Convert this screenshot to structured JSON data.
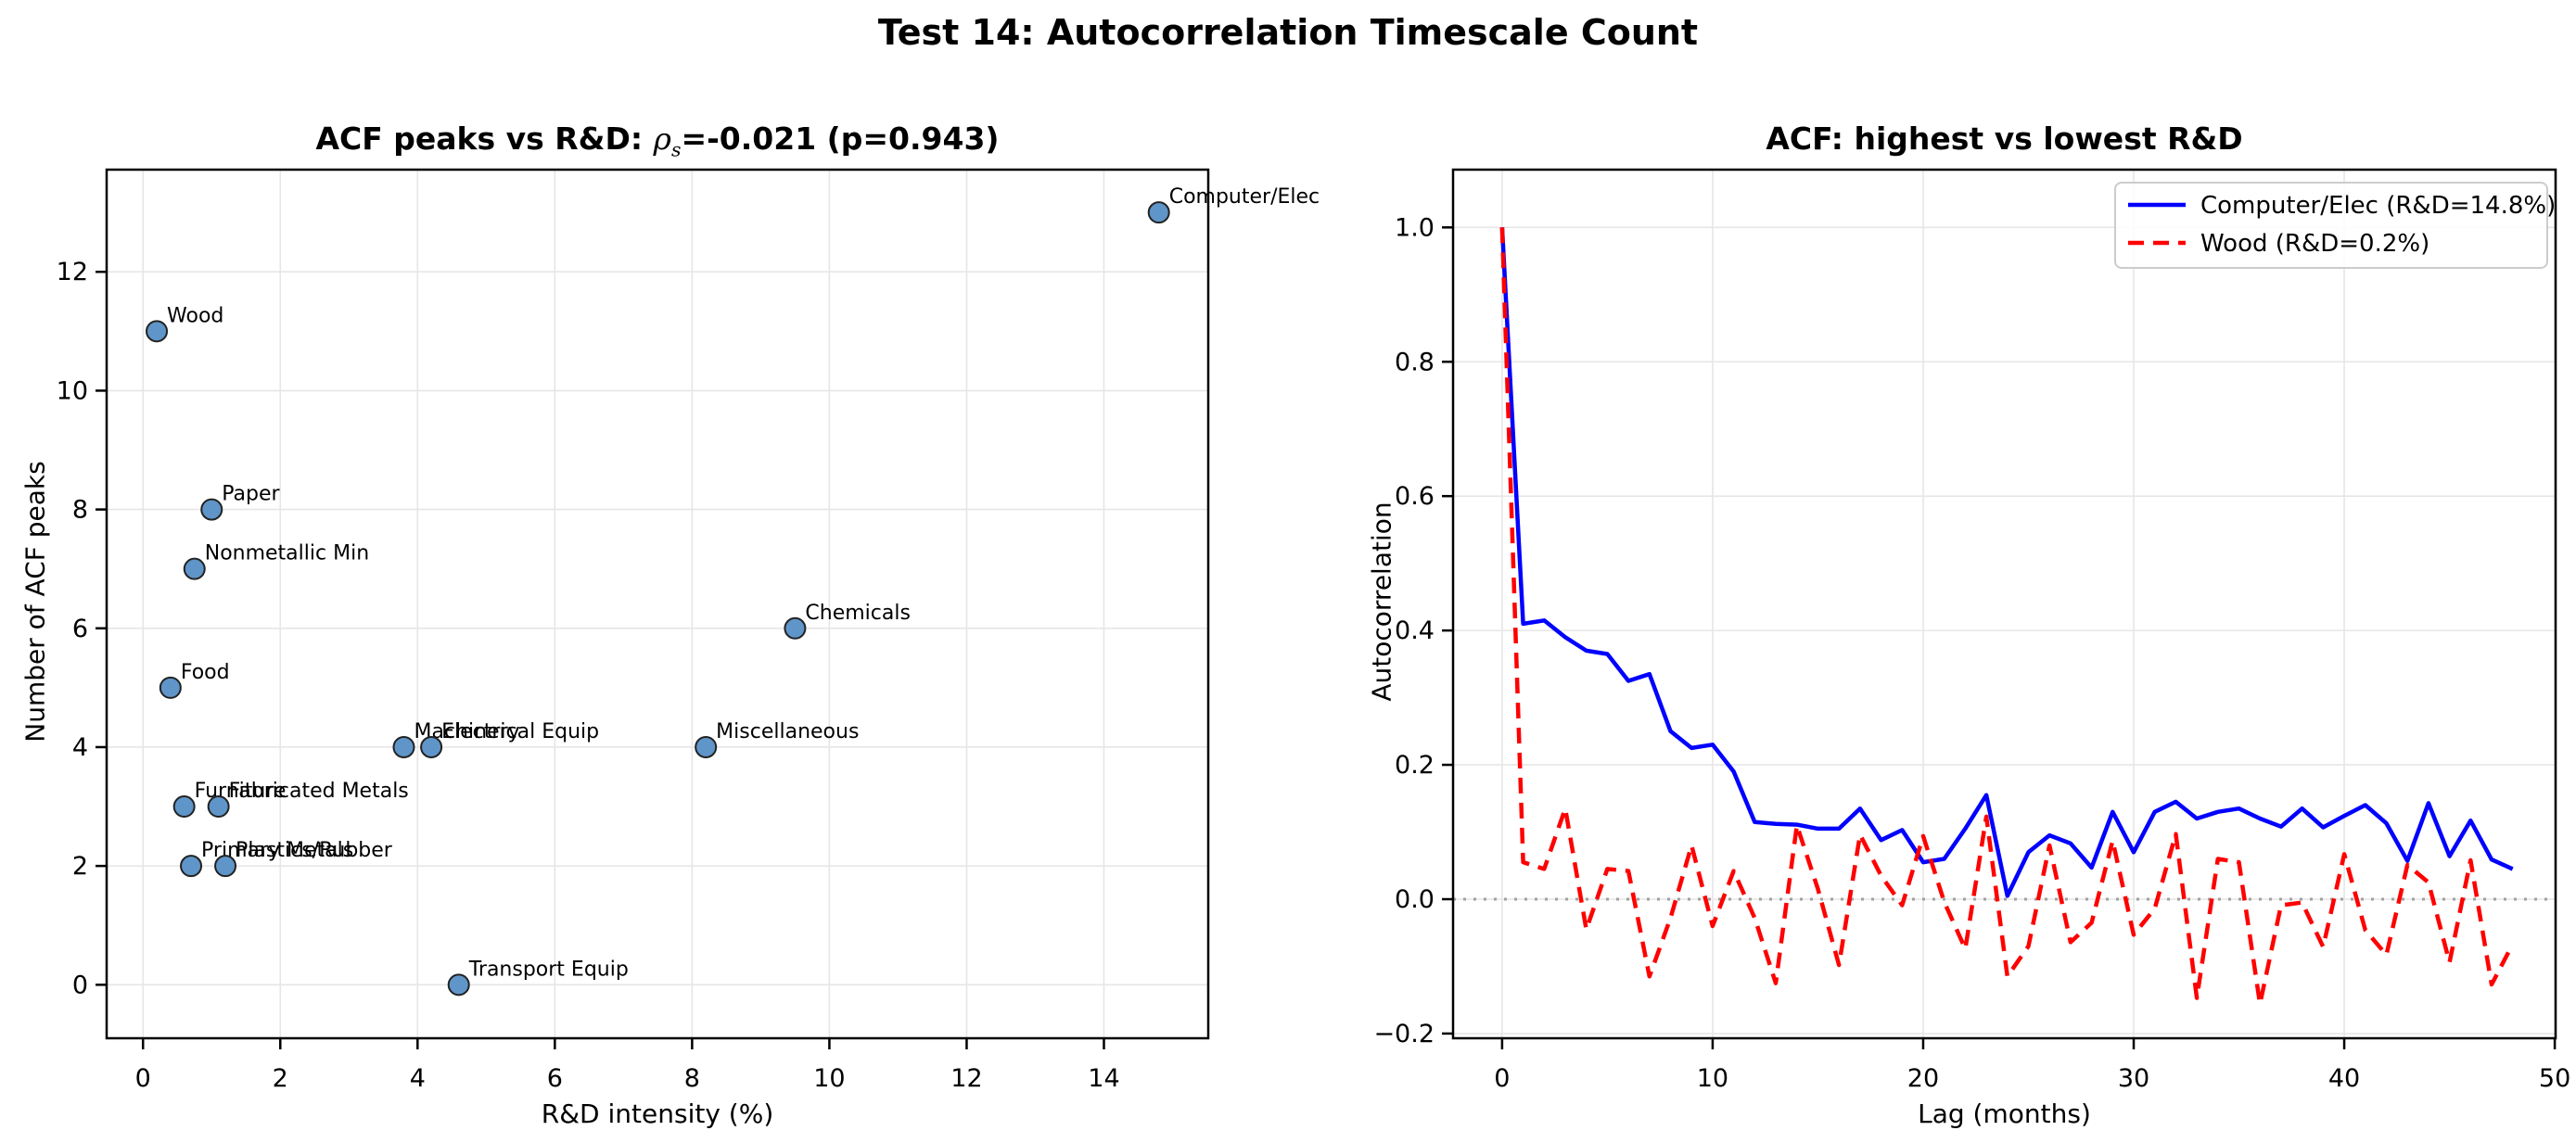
{
  "figure": {
    "suptitle": "Test 14: Autocorrelation Timescale Count"
  },
  "left_chart": {
    "title_prefix": "ACF peaks vs R&D: ",
    "title_rho": "ρ",
    "title_rho_sub": "s",
    "title_suffix": "=-0.021 (p=0.943)",
    "xlabel": "R&D intensity (%)",
    "ylabel": "Number of ACF peaks"
  },
  "right_chart": {
    "title": "ACF: highest vs lowest R&D",
    "xlabel": "Lag (months)",
    "ylabel": "Autocorrelation"
  },
  "chart_data": [
    {
      "type": "scatter",
      "title": "ACF peaks vs R&D: ρs=-0.021 (p=0.943)",
      "xlabel": "R&D intensity (%)",
      "ylabel": "Number of ACF peaks",
      "xlim": [
        -0.53,
        15.52
      ],
      "ylim": [
        -0.9,
        13.72
      ],
      "xticks": [
        0,
        2,
        4,
        6,
        8,
        10,
        12,
        14
      ],
      "yticks": [
        0,
        2,
        4,
        6,
        8,
        10,
        12
      ],
      "grid": true,
      "marker_fill": "#5f95c8",
      "marker_edge": "#222222",
      "points": [
        {
          "label": "Wood",
          "x": 0.2,
          "y": 11
        },
        {
          "label": "Paper",
          "x": 1.0,
          "y": 8
        },
        {
          "label": "Nonmetallic Min",
          "x": 0.75,
          "y": 7
        },
        {
          "label": "Chemicals",
          "x": 9.5,
          "y": 6
        },
        {
          "label": "Food",
          "x": 0.4,
          "y": 5
        },
        {
          "label": "Machinery",
          "x": 3.8,
          "y": 4
        },
        {
          "label": "Electrical Equip",
          "x": 4.2,
          "y": 4
        },
        {
          "label": "Miscellaneous",
          "x": 8.2,
          "y": 4
        },
        {
          "label": "Furniture",
          "x": 0.6,
          "y": 3
        },
        {
          "label": "Fabricated Metals",
          "x": 1.1,
          "y": 3
        },
        {
          "label": "Primary Metals",
          "x": 0.7,
          "y": 2
        },
        {
          "label": "Plastics/Rubber",
          "x": 1.2,
          "y": 2
        },
        {
          "label": "Transport Equip",
          "x": 4.6,
          "y": 0
        },
        {
          "label": "Computer/Elec",
          "x": 14.8,
          "y": 13
        }
      ]
    },
    {
      "type": "line",
      "title": "ACF: highest vs lowest R&D",
      "xlabel": "Lag (months)",
      "ylabel": "Autocorrelation",
      "xlim": [
        -2.33,
        50.04
      ],
      "ylim": [
        -0.207,
        1.086
      ],
      "xticks": [
        0,
        10,
        20,
        30,
        40,
        50
      ],
      "yticks": [
        -0.2,
        0.0,
        0.2,
        0.4,
        0.6,
        0.8,
        1.0
      ],
      "grid": true,
      "zero_line": true,
      "zero_line_color": "#a0a0a0",
      "legend_position": "upper right",
      "x": [
        0,
        1,
        2,
        3,
        4,
        5,
        6,
        7,
        8,
        9,
        10,
        11,
        12,
        13,
        14,
        15,
        16,
        17,
        18,
        19,
        20,
        21,
        22,
        23,
        24,
        25,
        26,
        27,
        28,
        29,
        30,
        31,
        32,
        33,
        34,
        35,
        36,
        37,
        38,
        39,
        40,
        41,
        42,
        43,
        44,
        45,
        46,
        47,
        48
      ],
      "series": [
        {
          "name": "Computer/Elec (R&D=14.8%)",
          "color": "#0000ff",
          "style": "solid",
          "values": [
            1.0,
            0.41,
            0.415,
            0.39,
            0.37,
            0.365,
            0.325,
            0.335,
            0.25,
            0.225,
            0.23,
            0.19,
            0.115,
            0.112,
            0.111,
            0.105,
            0.105,
            0.135,
            0.088,
            0.103,
            0.055,
            0.06,
            0.105,
            0.155,
            0.005,
            0.07,
            0.095,
            0.083,
            0.047,
            0.13,
            0.07,
            0.13,
            0.145,
            0.12,
            0.13,
            0.135,
            0.12,
            0.108,
            0.135,
            0.107,
            0.124,
            0.14,
            0.113,
            0.057,
            0.143,
            0.064,
            0.117,
            0.059,
            0.045
          ]
        },
        {
          "name": "Wood (R&D=0.2%)",
          "color": "#ff0000",
          "style": "dashed",
          "values": [
            1.0,
            0.055,
            0.045,
            0.135,
            -0.045,
            0.045,
            0.042,
            -0.115,
            -0.028,
            0.08,
            -0.04,
            0.042,
            -0.028,
            -0.125,
            0.11,
            0.015,
            -0.098,
            0.096,
            0.035,
            -0.009,
            0.094,
            -0.004,
            -0.074,
            0.123,
            -0.115,
            -0.07,
            0.08,
            -0.064,
            -0.035,
            0.087,
            -0.053,
            -0.014,
            0.097,
            -0.147,
            0.06,
            0.055,
            -0.156,
            -0.009,
            -0.005,
            -0.071,
            0.067,
            -0.046,
            -0.083,
            0.051,
            0.025,
            -0.094,
            0.058,
            -0.127,
            -0.067
          ]
        }
      ]
    }
  ]
}
